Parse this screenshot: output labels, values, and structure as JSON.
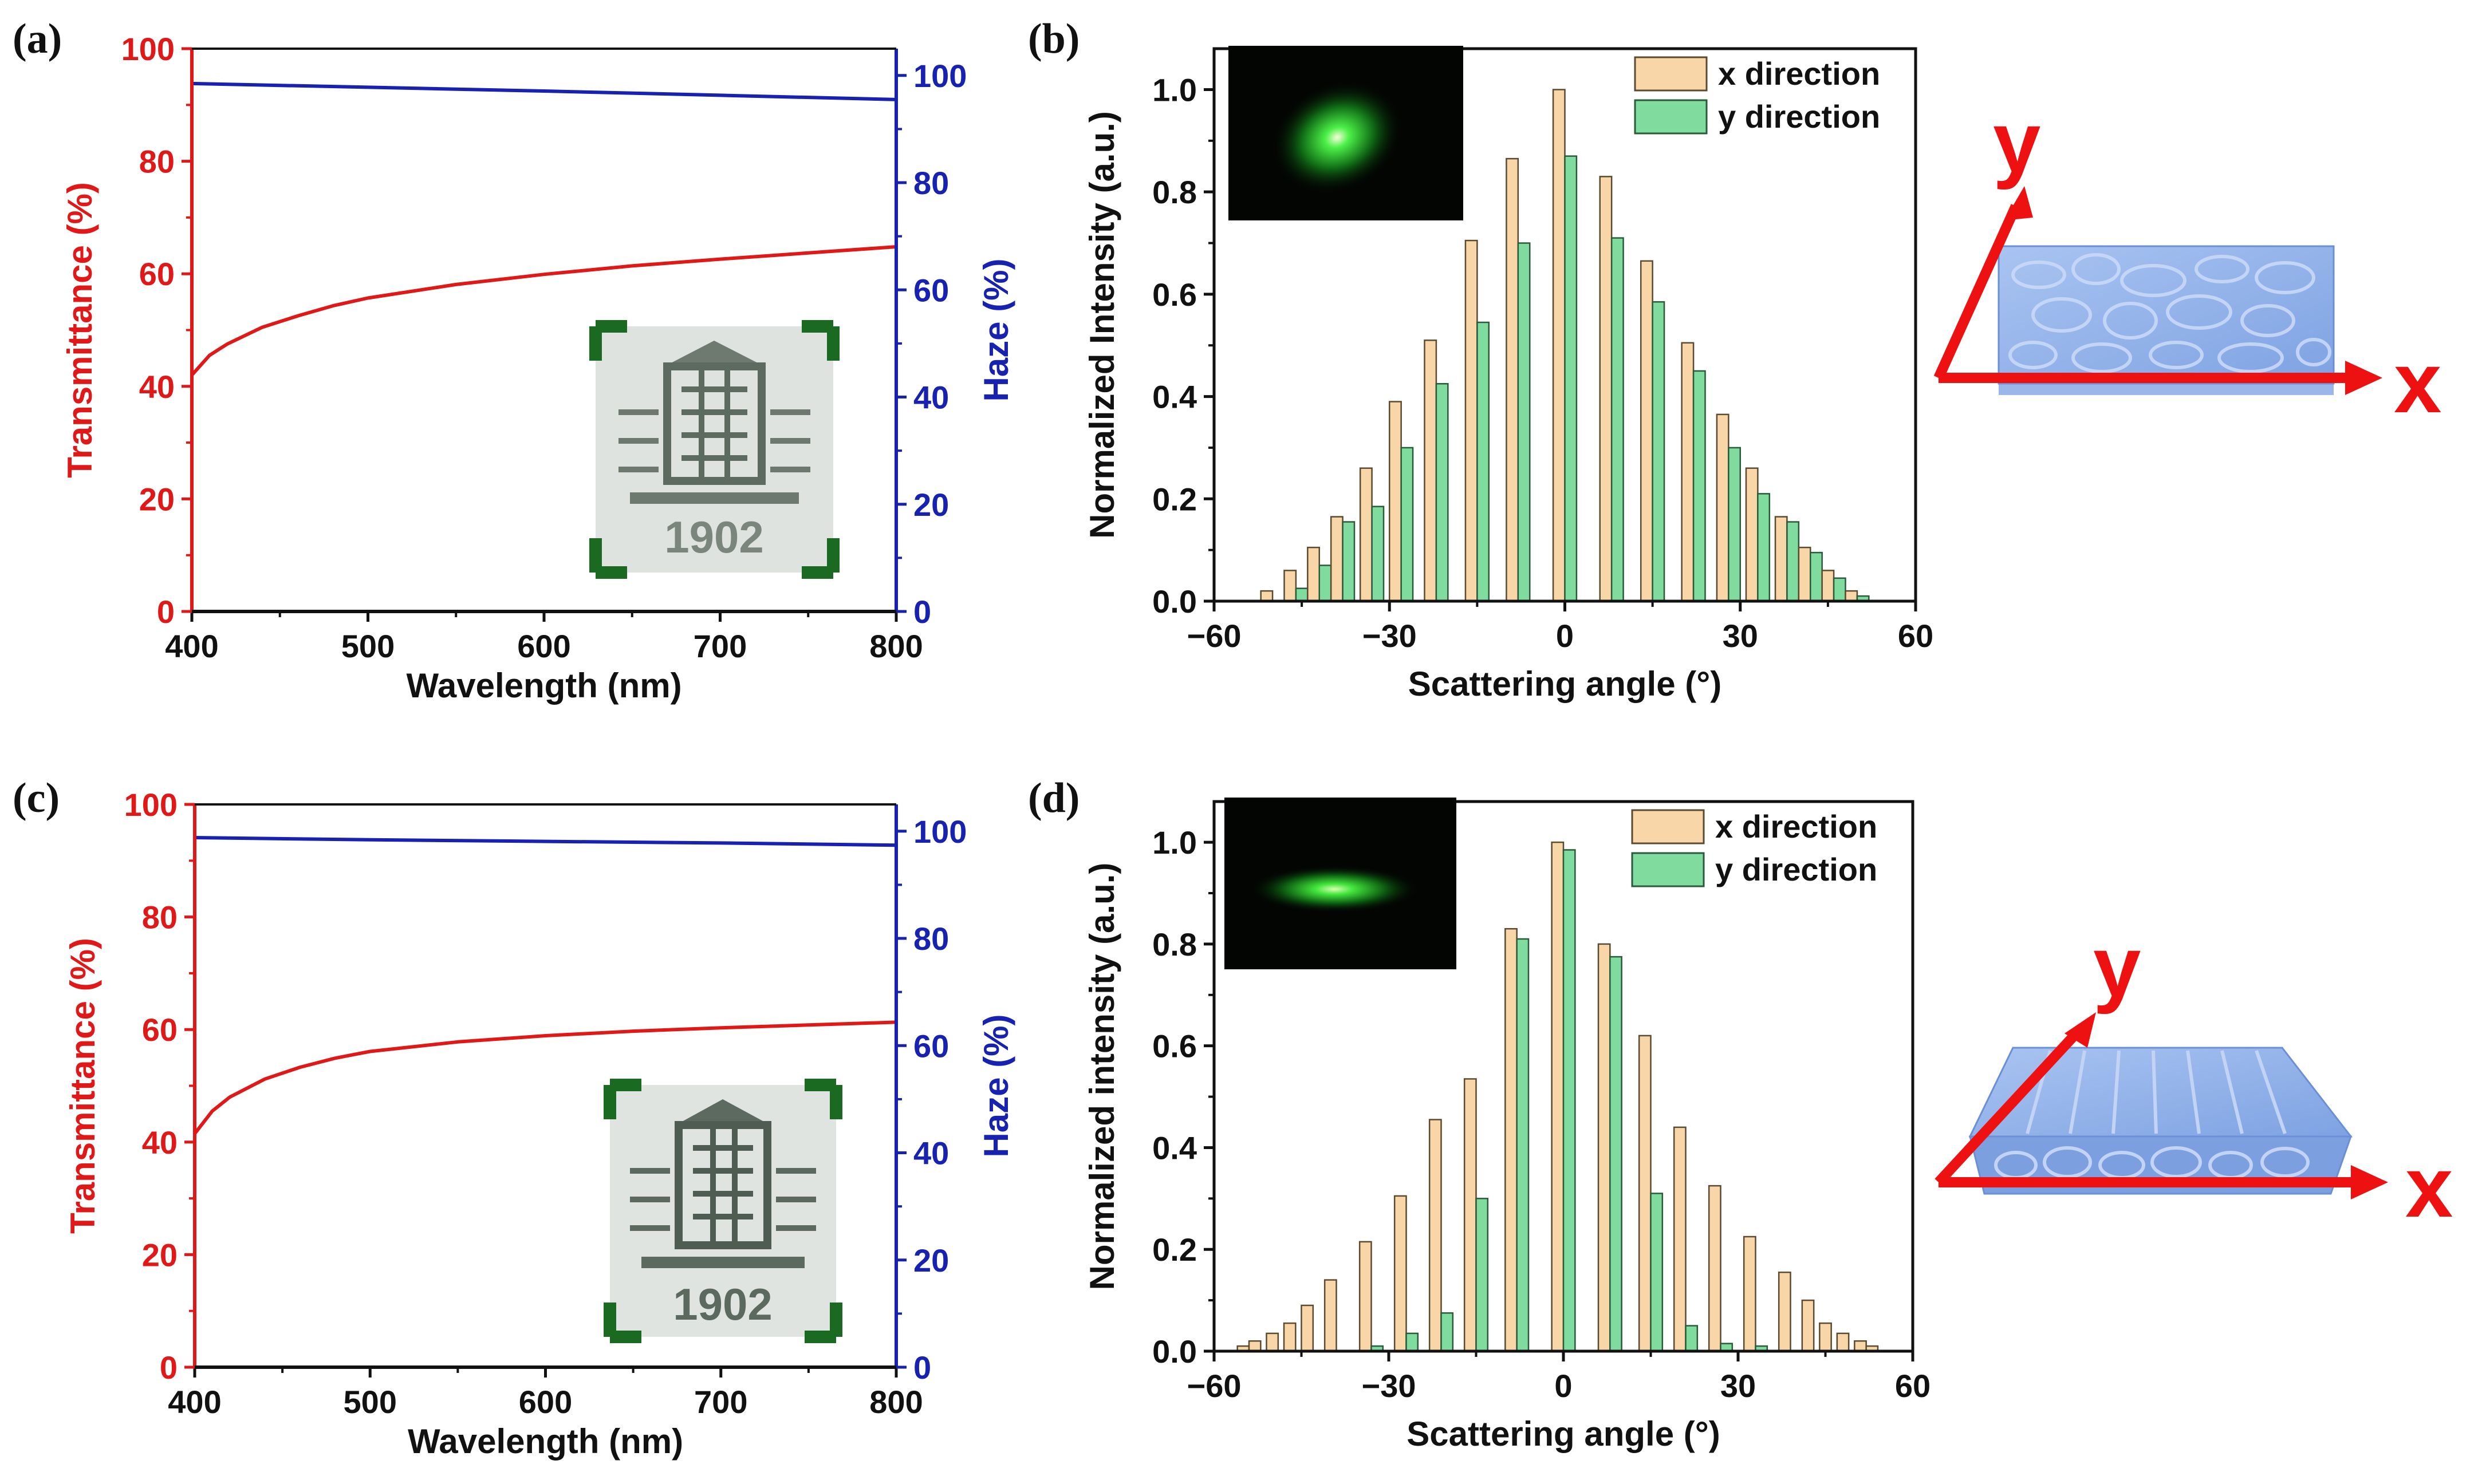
{
  "panels": {
    "a": "(a)",
    "b": "(b)",
    "c": "(c)",
    "d": "(d)"
  },
  "inset_text": "1902",
  "diagram_labels": {
    "x": "x",
    "y": "y"
  },
  "colors": {
    "transmittance": "#e01818",
    "haze": "#1822b0",
    "x_bar": "#f9d6a8",
    "y_bar": "#7fdc9e",
    "arrow": "#ee1111",
    "slab": "#8fb2ea"
  },
  "chart_data": [
    {
      "id": "a",
      "type": "line",
      "xlabel": "Wavelength (nm)",
      "ylabel": "Transmittance (%)",
      "y2label": "Haze (%)",
      "xlim": [
        400,
        800
      ],
      "ylim": [
        0,
        100
      ],
      "y2lim": [
        0,
        105
      ],
      "xticks": [
        400,
        500,
        600,
        700,
        800
      ],
      "yticks": [
        0,
        20,
        40,
        60,
        80,
        100
      ],
      "y2ticks": [
        0,
        20,
        40,
        60,
        80,
        100
      ],
      "series": [
        {
          "name": "Transmittance",
          "axis": "left",
          "x": [
            400,
            410,
            420,
            440,
            460,
            480,
            500,
            550,
            600,
            650,
            700,
            750,
            800
          ],
          "values": [
            42,
            45.5,
            47.5,
            50.5,
            52.5,
            54.3,
            55.7,
            58.1,
            59.9,
            61.4,
            62.6,
            63.7,
            64.8
          ]
        },
        {
          "name": "Haze",
          "axis": "right",
          "x": [
            400,
            500,
            600,
            700,
            800
          ],
          "values": [
            98.5,
            97.8,
            97.1,
            96.3,
            95.5
          ]
        }
      ]
    },
    {
      "id": "b",
      "type": "bar",
      "xlabel": "Scattering angle (°)",
      "ylabel": "Normalized Intensity (a.u.)",
      "xlim": [
        -60,
        60
      ],
      "ylim": [
        0,
        1.08
      ],
      "xticks": [
        -60,
        -30,
        0,
        30,
        60
      ],
      "yticks": [
        0.0,
        0.2,
        0.4,
        0.6,
        0.8,
        1.0
      ],
      "legend": [
        "x direction",
        "y direction"
      ],
      "x": [
        -50,
        -46,
        -42,
        -38,
        -33,
        -28,
        -22,
        -15,
        -8,
        0,
        8,
        15,
        22,
        28,
        33,
        38,
        42,
        46,
        50
      ],
      "series": [
        {
          "name": "x direction",
          "values": [
            0.02,
            0.06,
            0.105,
            0.165,
            0.26,
            0.39,
            0.51,
            0.705,
            0.865,
            1.0,
            0.83,
            0.665,
            0.505,
            0.365,
            0.26,
            0.165,
            0.105,
            0.06,
            0.02
          ]
        },
        {
          "name": "y direction",
          "values": [
            0.0,
            0.025,
            0.07,
            0.155,
            0.185,
            0.3,
            0.425,
            0.545,
            0.7,
            0.87,
            0.71,
            0.585,
            0.45,
            0.3,
            0.21,
            0.155,
            0.095,
            0.045,
            0.01
          ]
        }
      ]
    },
    {
      "id": "c",
      "type": "line",
      "xlabel": "Wavelength (nm)",
      "ylabel": "Transmittance (%)",
      "y2label": "Haze (%)",
      "xlim": [
        400,
        800
      ],
      "ylim": [
        0,
        100
      ],
      "y2lim": [
        0,
        105
      ],
      "xticks": [
        400,
        500,
        600,
        700,
        800
      ],
      "yticks": [
        0,
        20,
        40,
        60,
        80,
        100
      ],
      "y2ticks": [
        0,
        20,
        40,
        60,
        80,
        100
      ],
      "series": [
        {
          "name": "Transmittance",
          "axis": "left",
          "x": [
            400,
            410,
            420,
            440,
            460,
            480,
            500,
            550,
            600,
            650,
            700,
            750,
            800
          ],
          "values": [
            41.5,
            45.5,
            48,
            51.2,
            53.3,
            54.9,
            56.1,
            57.8,
            58.9,
            59.7,
            60.3,
            60.8,
            61.3
          ]
        },
        {
          "name": "Haze",
          "axis": "right",
          "x": [
            400,
            500,
            600,
            700,
            800
          ],
          "values": [
            98.8,
            98.4,
            98.1,
            97.8,
            97.4
          ]
        }
      ]
    },
    {
      "id": "d",
      "type": "bar",
      "xlabel": "Scattering angle (°)",
      "ylabel": "Normalized intensity (a.u.)",
      "xlim": [
        -60,
        60
      ],
      "ylim": [
        0,
        1.08
      ],
      "xticks": [
        -60,
        -30,
        0,
        30,
        60
      ],
      "yticks": [
        0.0,
        0.2,
        0.4,
        0.6,
        0.8,
        1.0
      ],
      "legend": [
        "x direction",
        "y direction"
      ],
      "x": [
        -54,
        -52,
        -49,
        -46,
        -43,
        -39,
        -33,
        -27,
        -21,
        -15,
        -8,
        0,
        8,
        15,
        21,
        27,
        33,
        39,
        43,
        46,
        49,
        52,
        54
      ],
      "series": [
        {
          "name": "x direction",
          "values": [
            0.01,
            0.02,
            0.035,
            0.055,
            0.09,
            0.14,
            0.215,
            0.305,
            0.455,
            0.535,
            0.83,
            1.0,
            0.8,
            0.62,
            0.44,
            0.325,
            0.225,
            0.155,
            0.1,
            0.055,
            0.035,
            0.02,
            0.01
          ]
        },
        {
          "name": "y direction",
          "values": [
            0,
            0,
            0,
            0,
            0,
            0,
            0.01,
            0.035,
            0.075,
            0.3,
            0.81,
            0.985,
            0.775,
            0.31,
            0.05,
            0.015,
            0.01,
            0,
            0,
            0,
            0,
            0,
            0
          ]
        }
      ]
    }
  ]
}
